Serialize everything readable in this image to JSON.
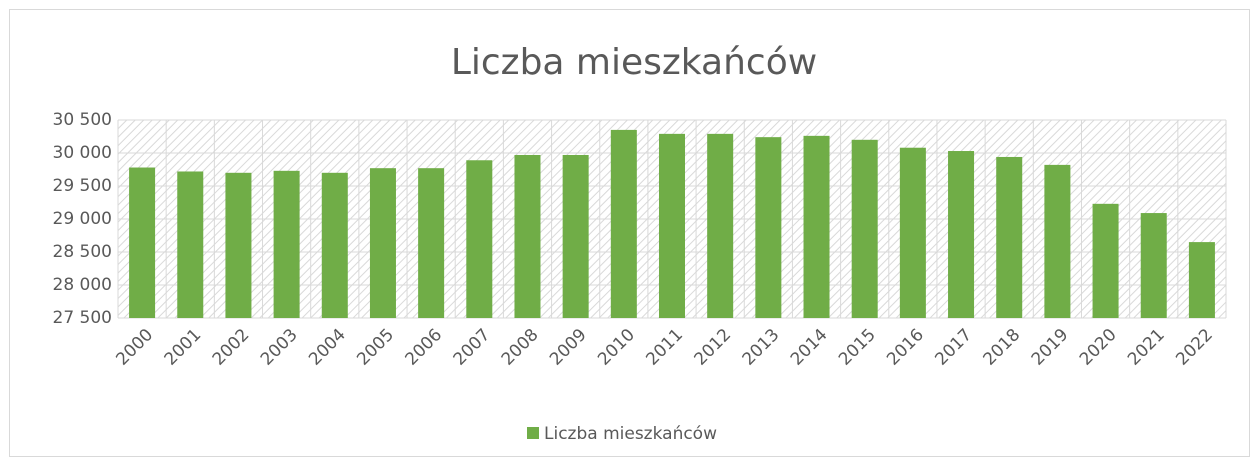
{
  "chart_data": {
    "type": "bar",
    "title": "Liczba mieszkańców",
    "categories": [
      "2000",
      "2001",
      "2002",
      "2003",
      "2004",
      "2005",
      "2006",
      "2007",
      "2008",
      "2009",
      "2010",
      "2011",
      "2012",
      "2013",
      "2014",
      "2015",
      "2016",
      "2017",
      "2018",
      "2019",
      "2020",
      "2021",
      "2022"
    ],
    "series": [
      {
        "name": "Liczba mieszkańców",
        "color": "#70ad47",
        "values": [
          29780,
          29720,
          29700,
          29730,
          29700,
          29770,
          29770,
          29890,
          29970,
          29970,
          30350,
          30290,
          30290,
          30240,
          30260,
          30200,
          30080,
          30030,
          29940,
          29820,
          29230,
          29090,
          28650
        ]
      }
    ],
    "ylim": [
      27500,
      30500
    ],
    "yticks": [
      {
        "value": 27500,
        "label": "27 500"
      },
      {
        "value": 28000,
        "label": "28 000"
      },
      {
        "value": 28500,
        "label": "28 500"
      },
      {
        "value": 29000,
        "label": "29 000"
      },
      {
        "value": 29500,
        "label": "29 500"
      },
      {
        "value": 30000,
        "label": "30 000"
      },
      {
        "value": 30500,
        "label": "30 500"
      }
    ],
    "grid": true,
    "legend": "bottom"
  }
}
